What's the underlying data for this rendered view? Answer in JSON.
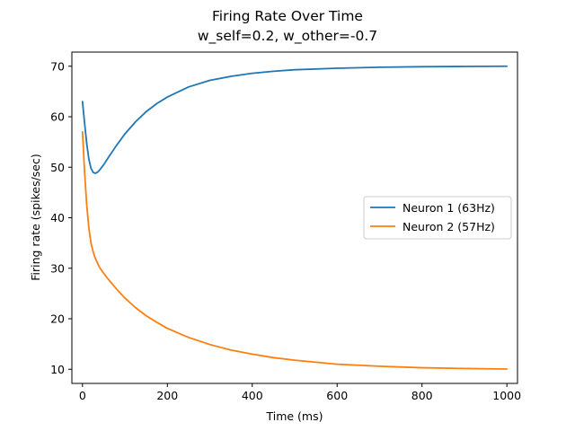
{
  "chart_data": {
    "type": "line",
    "title": "Firing Rate Over Time",
    "subtitle": "w_self=0.2, w_other=-0.7",
    "xlabel": "Time (ms)",
    "ylabel": "Firing rate (spikes/sec)",
    "xlim": [
      -25,
      1025
    ],
    "ylim": [
      7.2,
      72.8
    ],
    "xticks": [
      0,
      200,
      400,
      600,
      800,
      1000
    ],
    "yticks": [
      10,
      20,
      30,
      40,
      50,
      60,
      70
    ],
    "grid": false,
    "legend_position": "center-right",
    "series": [
      {
        "name": "Neuron 1 (63Hz)",
        "color": "#1f77b4",
        "x": [
          0,
          5,
          10,
          15,
          20,
          25,
          30,
          35,
          40,
          50,
          60,
          80,
          100,
          125,
          150,
          175,
          200,
          250,
          300,
          350,
          400,
          450,
          500,
          600,
          700,
          800,
          900,
          1000
        ],
        "y": [
          63.0,
          58.7,
          54.7,
          51.6,
          49.8,
          49.0,
          48.8,
          49.0,
          49.4,
          50.5,
          51.8,
          54.3,
          56.6,
          59.0,
          61.0,
          62.6,
          63.9,
          65.9,
          67.2,
          68.0,
          68.6,
          69.0,
          69.3,
          69.6,
          69.8,
          69.9,
          69.95,
          70.0
        ]
      },
      {
        "name": "Neuron 2 (57Hz)",
        "color": "#ff7f0e",
        "x": [
          0,
          5,
          10,
          15,
          20,
          25,
          30,
          40,
          50,
          60,
          80,
          100,
          125,
          150,
          175,
          200,
          250,
          300,
          350,
          400,
          450,
          500,
          600,
          700,
          800,
          900,
          1000
        ],
        "y": [
          57.0,
          49.0,
          42.5,
          38.0,
          35.0,
          33.3,
          32.0,
          30.2,
          29.0,
          27.9,
          25.9,
          24.1,
          22.2,
          20.6,
          19.3,
          18.1,
          16.3,
          14.9,
          13.8,
          13.0,
          12.3,
          11.8,
          11.0,
          10.6,
          10.3,
          10.15,
          10.05
        ]
      }
    ]
  }
}
